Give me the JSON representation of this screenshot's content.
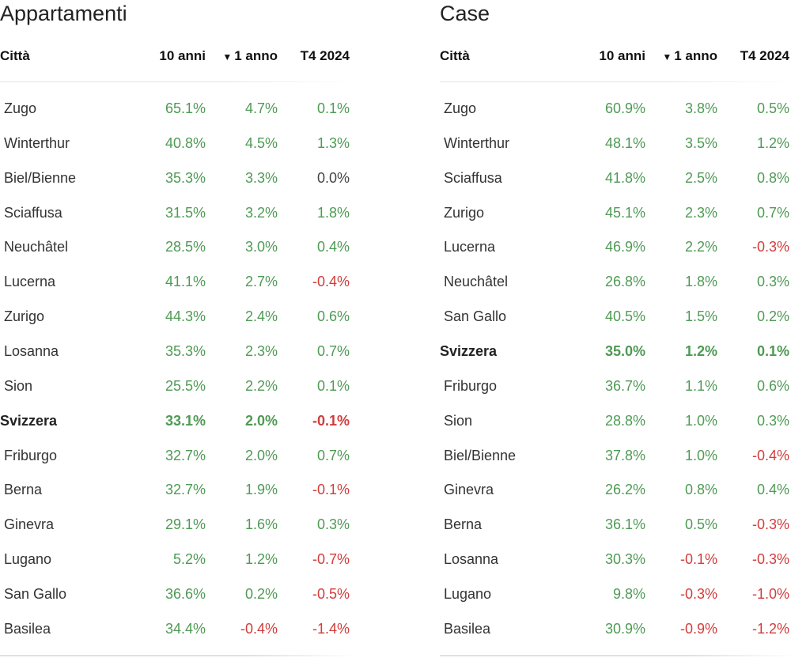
{
  "apartments": {
    "title": "Appartamenti",
    "columns": {
      "city": "Città",
      "ten_years": "10 anni",
      "one_year": "1 anno",
      "quarter": "T4 2024",
      "sort_glyph": "▼"
    },
    "rows": [
      {
        "city": "Zugo",
        "ten": "65.1%",
        "one": "4.7%",
        "q": "0.1%"
      },
      {
        "city": "Winterthur",
        "ten": "40.8%",
        "one": "4.5%",
        "q": "1.3%"
      },
      {
        "city": "Biel/Bienne",
        "ten": "35.3%",
        "one": "3.3%",
        "q": "0.0%"
      },
      {
        "city": "Sciaffusa",
        "ten": "31.5%",
        "one": "3.2%",
        "q": "1.8%"
      },
      {
        "city": "Neuchâtel",
        "ten": "28.5%",
        "one": "3.0%",
        "q": "0.4%"
      },
      {
        "city": "Lucerna",
        "ten": "41.1%",
        "one": "2.7%",
        "q": "-0.4%"
      },
      {
        "city": "Zurigo",
        "ten": "44.3%",
        "one": "2.4%",
        "q": "0.6%"
      },
      {
        "city": "Losanna",
        "ten": "35.3%",
        "one": "2.3%",
        "q": "0.7%"
      },
      {
        "city": "Sion",
        "ten": "25.5%",
        "one": "2.2%",
        "q": "0.1%"
      },
      {
        "city": "Svizzera",
        "ten": "33.1%",
        "one": "2.0%",
        "q": "-0.1%",
        "total": true
      },
      {
        "city": "Friburgo",
        "ten": "32.7%",
        "one": "2.0%",
        "q": "0.7%"
      },
      {
        "city": "Berna",
        "ten": "32.7%",
        "one": "1.9%",
        "q": "-0.1%"
      },
      {
        "city": "Ginevra",
        "ten": "29.1%",
        "one": "1.6%",
        "q": "0.3%"
      },
      {
        "city": "Lugano",
        "ten": "5.2%",
        "one": "1.2%",
        "q": "-0.7%"
      },
      {
        "city": "San Gallo",
        "ten": "36.6%",
        "one": "0.2%",
        "q": "-0.5%"
      },
      {
        "city": "Basilea",
        "ten": "34.4%",
        "one": "-0.4%",
        "q": "-1.4%"
      }
    ]
  },
  "houses": {
    "title": "Case",
    "columns": {
      "city": "Città",
      "ten_years": "10 anni",
      "one_year": "1 anno",
      "quarter": "T4 2024",
      "sort_glyph": "▼"
    },
    "rows": [
      {
        "city": "Zugo",
        "ten": "60.9%",
        "one": "3.8%",
        "q": "0.5%"
      },
      {
        "city": "Winterthur",
        "ten": "48.1%",
        "one": "3.5%",
        "q": "1.2%"
      },
      {
        "city": "Sciaffusa",
        "ten": "41.8%",
        "one": "2.5%",
        "q": "0.8%"
      },
      {
        "city": "Zurigo",
        "ten": "45.1%",
        "one": "2.3%",
        "q": "0.7%"
      },
      {
        "city": "Lucerna",
        "ten": "46.9%",
        "one": "2.2%",
        "q": "-0.3%"
      },
      {
        "city": "Neuchâtel",
        "ten": "26.8%",
        "one": "1.8%",
        "q": "0.3%"
      },
      {
        "city": "San Gallo",
        "ten": "40.5%",
        "one": "1.5%",
        "q": "0.2%"
      },
      {
        "city": "Svizzera",
        "ten": "35.0%",
        "one": "1.2%",
        "q": "0.1%",
        "total": true
      },
      {
        "city": "Friburgo",
        "ten": "36.7%",
        "one": "1.1%",
        "q": "0.6%"
      },
      {
        "city": "Sion",
        "ten": "28.8%",
        "one": "1.0%",
        "q": "0.3%"
      },
      {
        "city": "Biel/Bienne",
        "ten": "37.8%",
        "one": "1.0%",
        "q": "-0.4%"
      },
      {
        "city": "Ginevra",
        "ten": "26.2%",
        "one": "0.8%",
        "q": "0.4%"
      },
      {
        "city": "Berna",
        "ten": "36.1%",
        "one": "0.5%",
        "q": "-0.3%"
      },
      {
        "city": "Losanna",
        "ten": "30.3%",
        "one": "-0.1%",
        "q": "-0.3%"
      },
      {
        "city": "Lugano",
        "ten": "9.8%",
        "one": "-0.3%",
        "q": "-1.0%"
      },
      {
        "city": "Basilea",
        "ten": "30.9%",
        "one": "-0.9%",
        "q": "-1.2%"
      }
    ]
  },
  "colors": {
    "positive": "#4f9a55",
    "negative": "#d23c3c",
    "neutral": "#444444"
  }
}
